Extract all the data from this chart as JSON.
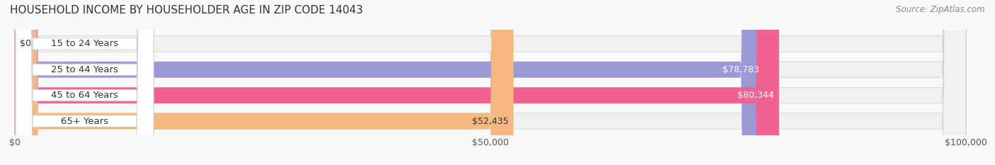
{
  "title": "HOUSEHOLD INCOME BY HOUSEHOLDER AGE IN ZIP CODE 14043",
  "source": "Source: ZipAtlas.com",
  "categories": [
    "15 to 24 Years",
    "25 to 44 Years",
    "45 to 64 Years",
    "65+ Years"
  ],
  "values": [
    0,
    78783,
    80344,
    52435
  ],
  "bar_colors": [
    "#5dd4d0",
    "#9b99d6",
    "#f06292",
    "#f5b97f"
  ],
  "bar_bg_color": "#eeeeee",
  "label_colors": [
    "#333333",
    "#ffffff",
    "#ffffff",
    "#333333"
  ],
  "value_labels": [
    "$0",
    "$78,783",
    "$80,344",
    "$52,435"
  ],
  "x_ticks": [
    0,
    50000,
    100000
  ],
  "x_tick_labels": [
    "$0",
    "$50,000",
    "$100,000"
  ],
  "x_max": 100000,
  "title_fontsize": 11,
  "source_fontsize": 8.5,
  "label_fontsize": 9.5,
  "value_fontsize": 9
}
